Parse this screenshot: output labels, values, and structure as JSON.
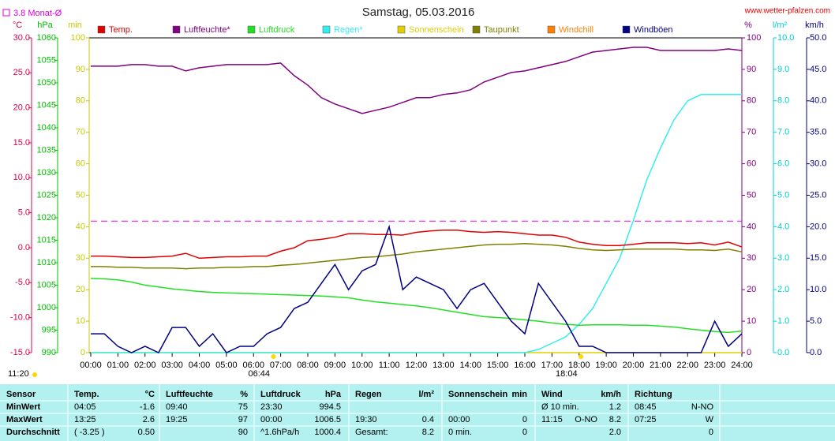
{
  "chart_data": {
    "type": "line",
    "title": "Samstag, 05.03.2016",
    "site": "www.wetter-pfalzen.com",
    "monthly_avg": {
      "label": "3.8 Monat-Ø",
      "value": 3.8,
      "color": "#e000e0",
      "axis": 0
    },
    "annotations": [
      "11:20",
      "06:44",
      "18:04"
    ],
    "xlim": [
      0,
      24
    ],
    "xticks": [
      {
        "value": 0,
        "label": "00:00"
      },
      {
        "value": 1,
        "label": "01:00"
      },
      {
        "value": 2,
        "label": "02:00"
      },
      {
        "value": 3,
        "label": "03:00"
      },
      {
        "value": 4,
        "label": "04:00"
      },
      {
        "value": 5,
        "label": "05:00"
      },
      {
        "value": 6,
        "label": "06:00"
      },
      {
        "value": 7,
        "label": "07:00"
      },
      {
        "value": 8,
        "label": "08:00"
      },
      {
        "value": 9,
        "label": "09:00"
      },
      {
        "value": 10,
        "label": "10:00"
      },
      {
        "value": 11,
        "label": "11:00"
      },
      {
        "value": 12,
        "label": "12:00"
      },
      {
        "value": 13,
        "label": "13:00"
      },
      {
        "value": 14,
        "label": "14:00"
      },
      {
        "value": 15,
        "label": "15:00"
      },
      {
        "value": 16,
        "label": "16:00"
      },
      {
        "value": 17,
        "label": "17:00"
      },
      {
        "value": 18,
        "label": "18:00"
      },
      {
        "value": 19,
        "label": "19:00"
      },
      {
        "value": 20,
        "label": "20:00"
      },
      {
        "value": 21,
        "label": "21:00"
      },
      {
        "value": 22,
        "label": "22:00"
      },
      {
        "value": 23,
        "label": "23:00"
      },
      {
        "value": 24,
        "label": "24:00"
      }
    ],
    "x": [
      0,
      0.5,
      1,
      1.5,
      2,
      2.5,
      3,
      3.5,
      4,
      4.5,
      5,
      5.5,
      6,
      6.5,
      7,
      7.5,
      8,
      8.5,
      9,
      9.5,
      10,
      10.5,
      11,
      11.5,
      12,
      12.5,
      13,
      13.5,
      14,
      14.5,
      15,
      15.5,
      16,
      16.5,
      17,
      17.5,
      18,
      18.5,
      19,
      19.5,
      20,
      20.5,
      21,
      21.5,
      22,
      22.5,
      23,
      23.5,
      24
    ],
    "axes": [
      {
        "label": "°C",
        "color": "#e0004a",
        "lim": [
          -15,
          30
        ],
        "ticks": [
          {
            "value": -15,
            "label": "-15.0"
          },
          {
            "value": -10,
            "label": "-10.0"
          },
          {
            "value": -5,
            "label": "-5.0"
          },
          {
            "value": 0,
            "label": "0.0"
          },
          {
            "value": 5,
            "label": "5.0"
          },
          {
            "value": 10,
            "label": "10.0"
          },
          {
            "value": 15,
            "label": "15.0"
          },
          {
            "value": 20,
            "label": "20.0"
          },
          {
            "value": 25,
            "label": "25.0"
          },
          {
            "value": 30,
            "label": "30.0"
          }
        ]
      },
      {
        "label": "hPa",
        "color": "#00c000",
        "lim": [
          990,
          1060
        ],
        "ticks": [
          990,
          995,
          1000,
          1005,
          1010,
          1015,
          1020,
          1025,
          1030,
          1035,
          1040,
          1045,
          1050,
          1055,
          1060
        ]
      },
      {
        "label": "min",
        "color": "#c8c800",
        "lim": [
          0,
          100
        ],
        "ticks": [
          0,
          10,
          20,
          30,
          40,
          50,
          60,
          70,
          80,
          90,
          100
        ]
      },
      {
        "label": "%",
        "color": "#800080",
        "lim": [
          0,
          100
        ],
        "ticks": [
          0,
          10,
          20,
          30,
          40,
          50,
          60,
          70,
          80,
          90,
          100
        ]
      },
      {
        "label": "l/m²",
        "color": "#00d0d0",
        "lim": [
          0,
          10
        ],
        "ticks": [
          {
            "value": 0,
            "label": "0.0"
          },
          {
            "value": 1,
            "label": "1.0"
          },
          {
            "value": 2,
            "label": "2.0"
          },
          {
            "value": 3,
            "label": "3.0"
          },
          {
            "value": 4,
            "label": "4.0"
          },
          {
            "value": 5,
            "label": "5.0"
          },
          {
            "value": 6,
            "label": "6.0"
          },
          {
            "value": 7,
            "label": "7.0"
          },
          {
            "value": 8,
            "label": "8.0"
          },
          {
            "value": 9,
            "label": "9.0"
          },
          {
            "value": 10,
            "label": "10.0"
          }
        ]
      },
      {
        "label": "km/h",
        "color": "#000080",
        "lim": [
          0,
          50
        ],
        "ticks": [
          {
            "value": 0,
            "label": "0.0"
          },
          {
            "value": 5,
            "label": "5.0"
          },
          {
            "value": 10,
            "label": "10.0"
          },
          {
            "value": 15,
            "label": "15.0"
          },
          {
            "value": 20,
            "label": "20.0"
          },
          {
            "value": 25,
            "label": "25.0"
          },
          {
            "value": 30,
            "label": "30.0"
          },
          {
            "value": 35,
            "label": "35.0"
          },
          {
            "value": 40,
            "label": "40.0"
          },
          {
            "value": 45,
            "label": "45.0"
          },
          {
            "value": 50,
            "label": "50.0"
          }
        ]
      }
    ],
    "series": [
      {
        "name": "Temp.",
        "color": "#e00000",
        "axis": 0,
        "values": [
          -1.2,
          -1.2,
          -1.3,
          -1.4,
          -1.4,
          -1.3,
          -1.2,
          -0.8,
          -1.5,
          -1.4,
          -1.3,
          -1.3,
          -1.2,
          -1.2,
          -0.5,
          0.0,
          1.0,
          1.2,
          1.5,
          2.0,
          2.0,
          1.9,
          1.9,
          1.8,
          2.2,
          2.4,
          2.5,
          2.5,
          2.3,
          2.2,
          2.3,
          2.2,
          2.0,
          1.8,
          1.8,
          1.5,
          0.8,
          0.5,
          0.3,
          0.3,
          0.5,
          0.7,
          0.7,
          0.7,
          0.6,
          0.7,
          0.4,
          0.8,
          0.1
        ]
      },
      {
        "name": "Luftfeuchte*",
        "color": "#800080",
        "axis": 3,
        "values": [
          91,
          91,
          91,
          91.5,
          91.5,
          91,
          91,
          89.5,
          90.5,
          91,
          91.5,
          91.5,
          91.5,
          91.5,
          92,
          88,
          85,
          81,
          79,
          77.5,
          76,
          77,
          78,
          79.5,
          81,
          81,
          82,
          82.5,
          83.5,
          86,
          87.5,
          89,
          89.5,
          90.5,
          91.5,
          92.5,
          94,
          95.5,
          96,
          96.5,
          97,
          97,
          96,
          96,
          96,
          96,
          96,
          96.5,
          96
        ]
      },
      {
        "name": "Luftdruck",
        "color": "#22e022",
        "axis": 1,
        "values": [
          1006.5,
          1006.4,
          1006.2,
          1005.7,
          1005,
          1004.6,
          1004.2,
          1003.9,
          1003.6,
          1003.4,
          1003.3,
          1003.2,
          1003.1,
          1003,
          1002.9,
          1002.8,
          1002.7,
          1002.6,
          1002.4,
          1002.2,
          1001.7,
          1001.3,
          1001,
          1000.7,
          1000.4,
          1000,
          999.5,
          999,
          998.5,
          998,
          997.8,
          997.6,
          997.3,
          997,
          996.6,
          996.3,
          996.1,
          996.2,
          996.2,
          996.2,
          996.1,
          996.1,
          995.9,
          995.7,
          995.3,
          995,
          994.7,
          994.5,
          994.8
        ]
      },
      {
        "name": "Regen*",
        "color": "#33eeee",
        "axis": 4,
        "values": [
          0,
          0,
          0,
          0,
          0,
          0,
          0,
          0,
          0,
          0,
          0,
          0,
          0,
          0,
          0,
          0,
          0,
          0,
          0,
          0,
          0,
          0,
          0,
          0,
          0,
          0,
          0,
          0,
          0,
          0,
          0,
          0,
          0,
          0.1,
          0.3,
          0.5,
          0.9,
          1.4,
          2.2,
          3.0,
          4.2,
          5.5,
          6.5,
          7.4,
          8.0,
          8.2,
          8.2,
          8.2,
          8.2
        ]
      },
      {
        "name": "Sonnenschein",
        "color": "#e0d000",
        "axis": 2,
        "values": [
          0,
          0,
          0,
          0,
          0,
          0,
          0,
          0,
          0,
          0,
          0,
          0,
          0,
          0,
          0,
          0,
          0,
          0,
          0,
          0,
          0,
          0,
          0,
          0,
          0,
          0,
          0,
          0,
          0,
          0,
          0,
          0,
          0,
          0,
          0,
          0,
          0,
          0,
          0,
          0,
          0,
          0,
          0,
          0,
          0,
          0,
          0,
          0,
          0
        ]
      },
      {
        "name": "Taupunkt",
        "color": "#808000",
        "axis": 0,
        "values": [
          -2.7,
          -2.7,
          -2.8,
          -2.8,
          -2.9,
          -2.9,
          -2.9,
          -3.0,
          -2.9,
          -2.9,
          -2.8,
          -2.8,
          -2.7,
          -2.7,
          -2.5,
          -2.4,
          -2.2,
          -2.0,
          -1.8,
          -1.6,
          -1.4,
          -1.3,
          -1.1,
          -0.9,
          -0.6,
          -0.4,
          -0.2,
          0.0,
          0.2,
          0.4,
          0.5,
          0.5,
          0.6,
          0.5,
          0.4,
          0.2,
          -0.1,
          -0.3,
          -0.4,
          -0.3,
          -0.2,
          -0.2,
          -0.2,
          -0.2,
          -0.3,
          -0.3,
          -0.4,
          -0.2,
          -0.6
        ]
      },
      {
        "name": "Windchill",
        "color": "#ff8000",
        "axis": 0,
        "values": [
          null,
          null,
          null,
          null,
          null,
          null,
          null,
          null,
          null,
          null,
          null,
          null,
          null,
          null,
          null,
          null,
          null,
          null,
          null,
          null,
          null,
          null,
          null,
          null,
          null,
          null,
          null,
          null,
          null,
          null,
          null,
          null,
          null,
          null,
          null,
          null,
          null,
          null,
          null,
          null,
          null,
          null,
          null,
          null,
          null,
          null,
          null,
          null,
          null
        ]
      },
      {
        "name": "Windböen",
        "color": "#000080",
        "axis": 5,
        "values": [
          3,
          3,
          1,
          0,
          1,
          0,
          4,
          4,
          1,
          3,
          0,
          1,
          1,
          3,
          4,
          7,
          8,
          11,
          14,
          10,
          13,
          14,
          20,
          10,
          12,
          11,
          10,
          7,
          10,
          11,
          8,
          5,
          3,
          11,
          8,
          5,
          1,
          1,
          0,
          0,
          0,
          0,
          0,
          0,
          0,
          0,
          5,
          1,
          3
        ]
      }
    ]
  },
  "table": {
    "header": [
      {
        "name": "Sensor"
      },
      {
        "name": "Temp.",
        "unit": "°C"
      },
      {
        "name": "Luftfeuchte",
        "unit": "%"
      },
      {
        "name": "Luftdruck",
        "unit": "hPa"
      },
      {
        "name": "Regen",
        "unit": "l/m²"
      },
      {
        "name": "Sonnenschein",
        "unit": "min"
      },
      {
        "name": "Wind",
        "unit": "km/h"
      },
      {
        "name": "Richtung"
      }
    ],
    "rows": [
      {
        "label": "MinWert",
        "cells": [
          [
            "04:05",
            "-1.6"
          ],
          [
            "09:40",
            "75"
          ],
          [
            "23:30",
            "994.5"
          ],
          null,
          null,
          [
            "Ø 10 min.",
            "1.2"
          ],
          [
            "08:45",
            "N-NO"
          ]
        ]
      },
      {
        "label": "MaxWert",
        "cells": [
          [
            "13:25",
            "2.6"
          ],
          [
            "19:25",
            "97"
          ],
          [
            "00:00",
            "1006.5"
          ],
          [
            "19:30",
            "0.4"
          ],
          [
            "00:00",
            "0"
          ],
          [
            "11:15",
            "O-NO",
            "8.2"
          ],
          [
            "07:25",
            "W"
          ]
        ]
      },
      {
        "label": "Durchschnitt",
        "cells": [
          [
            "( -3.25 )",
            "0.50"
          ],
          [
            "90"
          ],
          [
            "^1.6hPa/h",
            "1000.4"
          ],
          [
            "Gesamt:",
            "8.2"
          ],
          [
            "0 min.",
            "0"
          ],
          [
            "2.0"
          ],
          [
            "0"
          ]
        ]
      }
    ]
  }
}
